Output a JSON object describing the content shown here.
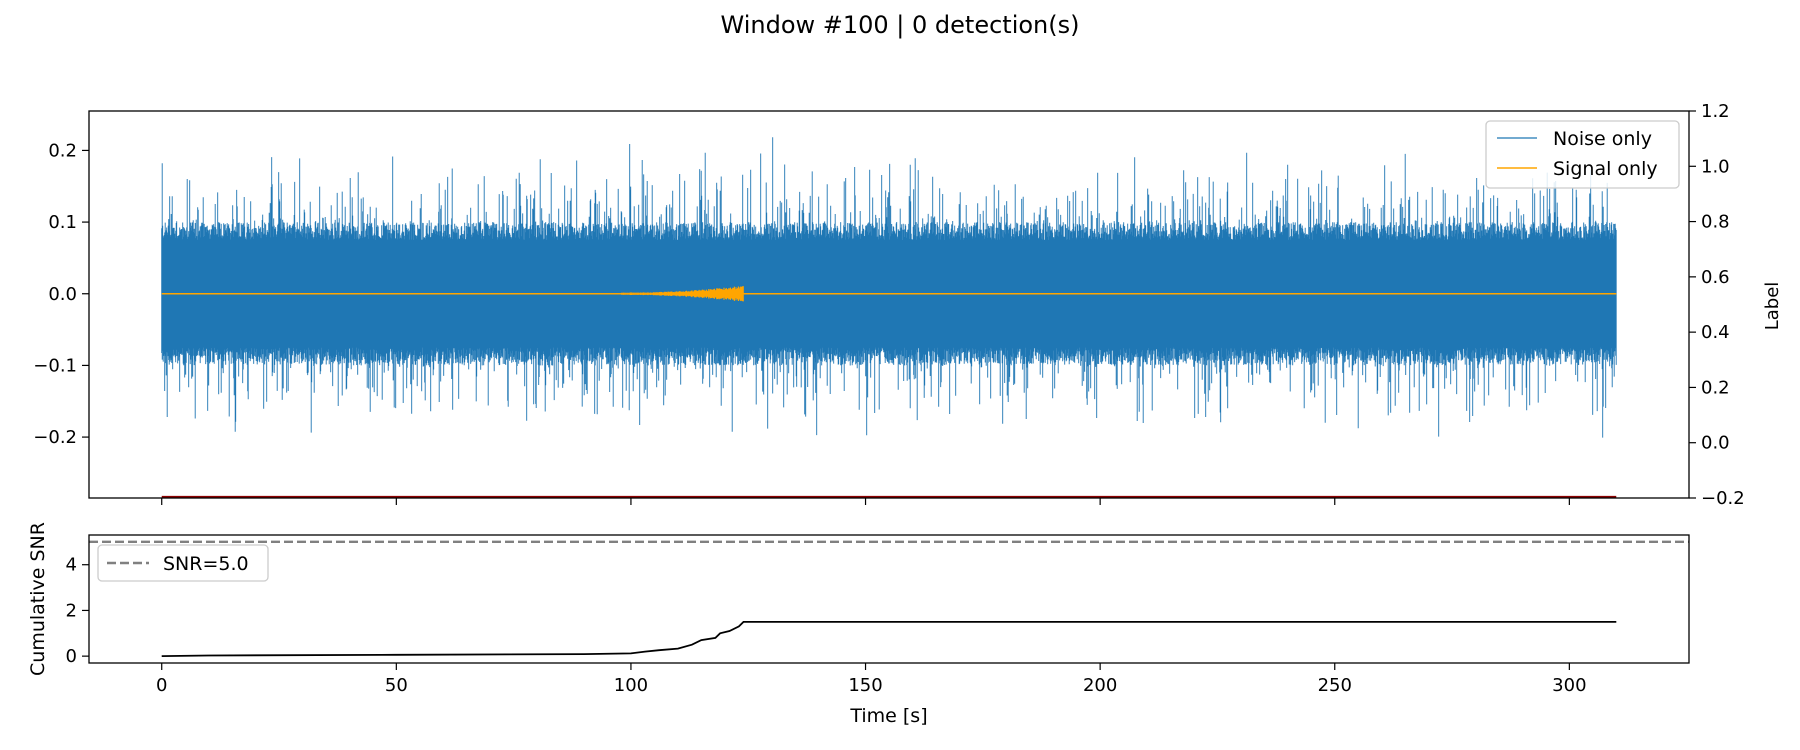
{
  "figure": {
    "suptitle": "Window #100 | 0 detection(s)"
  },
  "chart_data": [
    {
      "type": "line",
      "panel": "top",
      "xlim": [
        -15.5,
        325.5
      ],
      "ylim": [
        -0.285,
        0.255
      ],
      "ylim_right": [
        -0.2,
        1.2
      ],
      "y_ticks": [
        -0.2,
        -0.1,
        0.0,
        0.1,
        0.2
      ],
      "y_tick_labels": [
        "−0.2",
        "−0.1",
        "0.0",
        "0.1",
        "0.2"
      ],
      "y_right_ticks": [
        -0.2,
        0.0,
        0.2,
        0.4,
        0.6,
        0.8,
        1.0,
        1.2
      ],
      "y_right_tick_labels": [
        "−0.2",
        "0.0",
        "0.2",
        "0.4",
        "0.6",
        "0.8",
        "1.0",
        "1.2"
      ],
      "ylabel_right": "Label",
      "legend": {
        "placement": "top-right"
      },
      "series": [
        {
          "name": "Noise only",
          "color": "#1f77b4",
          "x_range": [
            0,
            310
          ],
          "amplitude_envelope": 0.1,
          "peak_abs": 0.265,
          "mean": 0.0
        },
        {
          "name": "Signal only",
          "color": "#ffa500",
          "x_range": [
            0,
            310
          ],
          "burst": {
            "x_start": 98,
            "x_end": 124,
            "peak_x": 119,
            "peak_abs": 0.012
          }
        },
        {
          "name": "",
          "axis": "right",
          "color": "#8b0000",
          "x": [
            0,
            310
          ],
          "y": [
            -0.2,
            -0.2
          ]
        }
      ]
    },
    {
      "type": "line",
      "panel": "bottom",
      "xlabel": "Time [s]",
      "ylabel": "Cumulative SNR",
      "xlim": [
        -15.5,
        325.5
      ],
      "ylim": [
        -0.3,
        5.3
      ],
      "x_ticks": [
        0,
        50,
        100,
        150,
        200,
        250,
        300
      ],
      "x_tick_labels": [
        "0",
        "50",
        "100",
        "150",
        "200",
        "250",
        "300"
      ],
      "y_ticks": [
        0,
        2,
        4
      ],
      "y_tick_labels": [
        "0",
        "2",
        "4"
      ],
      "legend": {
        "placement": "top-left"
      },
      "series": [
        {
          "name": "",
          "color": "#000000",
          "x": [
            0,
            10,
            50,
            90,
            100,
            103,
            106,
            110,
            113,
            115,
            118,
            119,
            121,
            123,
            124,
            310
          ],
          "y": [
            0.0,
            0.03,
            0.06,
            0.09,
            0.12,
            0.2,
            0.26,
            0.33,
            0.5,
            0.7,
            0.8,
            1.0,
            1.1,
            1.3,
            1.5,
            1.5
          ]
        },
        {
          "name": "SNR=5.0",
          "color": "#808080",
          "style": "dashed",
          "x": [
            -15.5,
            325.5
          ],
          "y": [
            5.0,
            5.0
          ]
        }
      ]
    }
  ]
}
